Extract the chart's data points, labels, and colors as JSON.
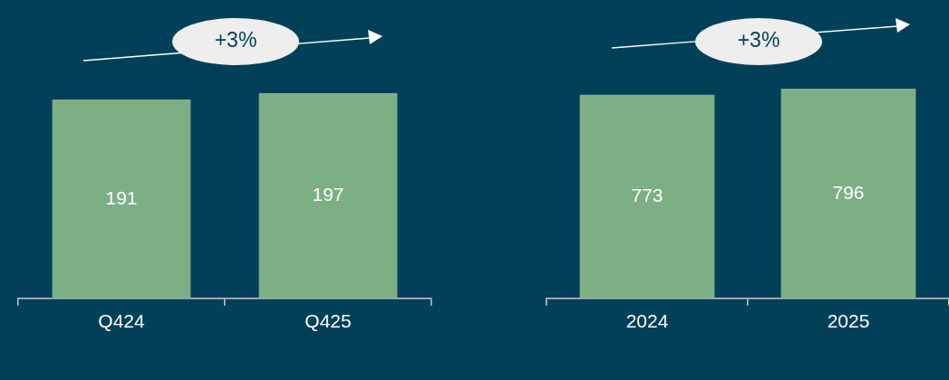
{
  "chart_data": [
    {
      "type": "bar",
      "categories": [
        "Q424",
        "Q425"
      ],
      "values": [
        191,
        197
      ],
      "color": "#7daf84",
      "data_labels": true,
      "grid": false,
      "legend": false,
      "tick_labels": "x",
      "annotations": [
        "+3%"
      ]
    },
    {
      "type": "bar",
      "categories": [
        "2024",
        "2025"
      ],
      "values": [
        773,
        796
      ],
      "color": "#7daf84",
      "data_labels": true,
      "grid": false,
      "legend": false,
      "tick_labels": "x",
      "annotations": [
        "+3%"
      ]
    }
  ]
}
